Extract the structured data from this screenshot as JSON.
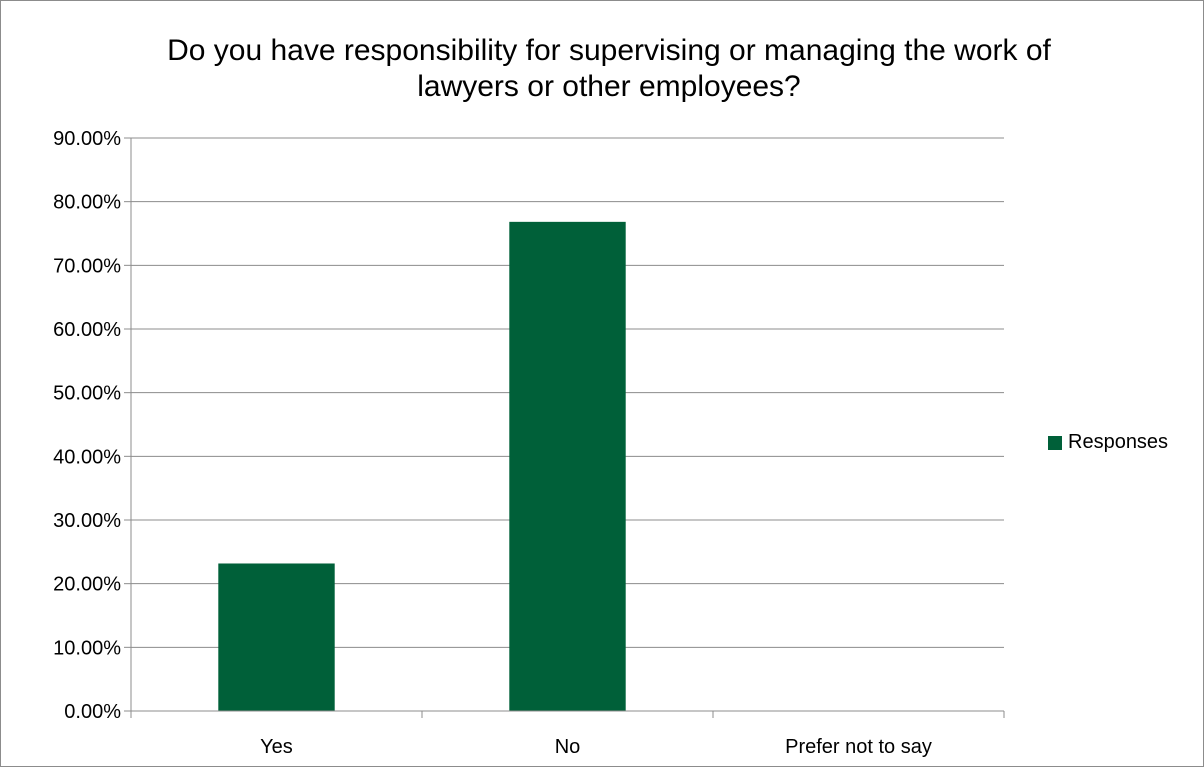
{
  "chart_data": {
    "type": "bar",
    "title": "Do you have responsibility for supervising or managing the work of\nlawyers or other employees?",
    "categories": [
      "Yes",
      "No",
      "Prefer not to say"
    ],
    "series": [
      {
        "name": "Responses",
        "values": [
          23.17,
          76.83,
          0
        ],
        "color": "#006039"
      }
    ],
    "ylim": [
      0,
      90
    ],
    "ytick_step": 10,
    "ytick_labels": [
      "0.00%",
      "10.00%",
      "20.00%",
      "30.00%",
      "40.00%",
      "50.00%",
      "60.00%",
      "70.00%",
      "80.00%",
      "90.00%"
    ],
    "xlabel": "",
    "ylabel": "",
    "grid": true,
    "legend_position": "right"
  }
}
